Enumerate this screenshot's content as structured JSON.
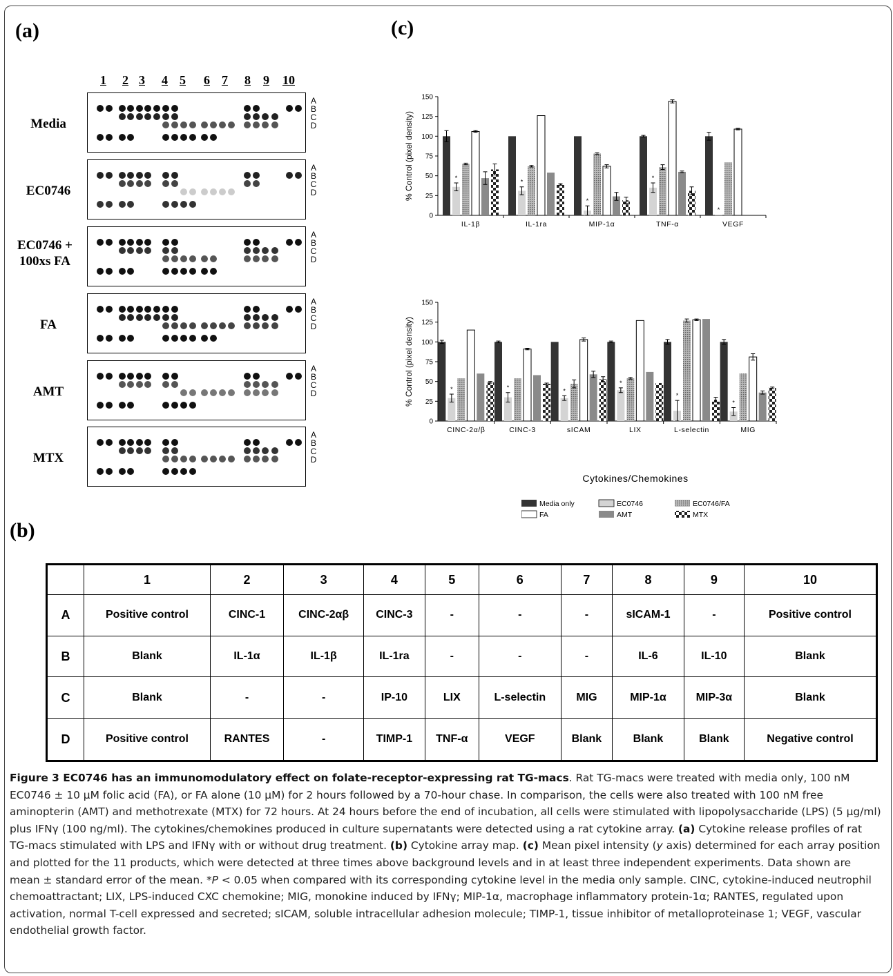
{
  "panel_labels": {
    "a": "(a)",
    "b": "(b)",
    "c": "(c)"
  },
  "array_panel": {
    "column_numbers": [
      "1",
      "2",
      "3",
      "4",
      "5",
      "6",
      "7",
      "8",
      "9",
      "10"
    ],
    "row_letters": [
      "A",
      "B",
      "C",
      "D"
    ],
    "blots": [
      {
        "label": "Media"
      },
      {
        "label": "EC0746"
      },
      {
        "label": "EC0746 + 100xs FA"
      },
      {
        "label": "FA"
      },
      {
        "label": "AMT"
      },
      {
        "label": "MTX"
      }
    ]
  },
  "chart_data": [
    {
      "type": "bar",
      "ylabel": "% Control (pixel density)",
      "ylim": [
        0,
        150
      ],
      "yticks": [
        "0",
        "25",
        "50",
        "75",
        "100",
        "125",
        "150"
      ],
      "categories": [
        "IL-1β",
        "IL-1ra",
        "MIP-1α",
        "TNF-α",
        "VEGF"
      ],
      "series": [
        {
          "name": "Media only",
          "values": [
            100,
            100,
            100,
            100,
            100
          ],
          "errors": [
            7,
            0,
            0,
            1,
            5
          ]
        },
        {
          "name": "EC0746",
          "values": [
            36,
            31,
            6,
            35,
            1
          ],
          "errors": [
            5,
            5,
            6,
            6,
            0
          ],
          "star": [
            true,
            true,
            true,
            true,
            true
          ]
        },
        {
          "name": "EC0746/FA",
          "values": [
            65,
            62,
            78,
            61,
            67
          ],
          "errors": [
            1,
            1,
            1,
            3,
            0
          ]
        },
        {
          "name": "FA",
          "values": [
            106,
            126,
            62,
            144,
            109
          ],
          "errors": [
            1,
            0,
            2,
            2,
            1
          ]
        },
        {
          "name": "AMT",
          "values": [
            47,
            54,
            24,
            55,
            0
          ],
          "errors": [
            8,
            0,
            5,
            1,
            0
          ]
        },
        {
          "name": "MTX",
          "values": [
            58,
            39,
            19,
            31,
            0
          ],
          "errors": [
            7,
            1,
            4,
            5,
            0
          ]
        }
      ]
    },
    {
      "type": "bar",
      "ylabel": "% Control (pixel density)",
      "xlabel": "Cytokines/Chemokines",
      "ylim": [
        0,
        150
      ],
      "yticks": [
        "0",
        "25",
        "50",
        "75",
        "100",
        "125",
        "150"
      ],
      "categories": [
        "CINC-2α/β",
        "CINC-3",
        "sICAM",
        "LIX",
        "L-selectin",
        "MIG"
      ],
      "series": [
        {
          "name": "Media only",
          "values": [
            100,
            100,
            100,
            100,
            100,
            100
          ],
          "errors": [
            2,
            1,
            0,
            1,
            3,
            3
          ]
        },
        {
          "name": "EC0746",
          "values": [
            29,
            30,
            29,
            39,
            13,
            12
          ],
          "errors": [
            5,
            6,
            3,
            3,
            13,
            5
          ],
          "star": [
            true,
            true,
            true,
            true,
            true,
            true
          ]
        },
        {
          "name": "EC0746/FA",
          "values": [
            54,
            54,
            47,
            54,
            127,
            60
          ],
          "errors": [
            0,
            0,
            5,
            1,
            2,
            0
          ]
        },
        {
          "name": "FA",
          "values": [
            115,
            91,
            103,
            127,
            128,
            81
          ],
          "errors": [
            0,
            1,
            2,
            0,
            1,
            4
          ]
        },
        {
          "name": "AMT",
          "values": [
            60,
            58,
            59,
            62,
            129,
            36
          ],
          "errors": [
            0,
            0,
            4,
            0,
            0,
            2
          ]
        },
        {
          "name": "MTX",
          "values": [
            49,
            47,
            53,
            48,
            27,
            42
          ],
          "errors": [
            1,
            1,
            3,
            0,
            3,
            1
          ]
        }
      ]
    }
  ],
  "legend": [
    "Media only",
    "EC0746",
    "EC0746/FA",
    "FA",
    "AMT",
    "MTX"
  ],
  "series_colors": {
    "Media only": "#333333",
    "EC0746": "#d4d4d4",
    "EC0746/FA": "#aaaaaa",
    "FA": "#ffffff",
    "AMT": "#8a8a8a",
    "MTX": "#444444"
  },
  "map_table": {
    "header": [
      "",
      "1",
      "2",
      "3",
      "4",
      "5",
      "6",
      "7",
      "8",
      "9",
      "10"
    ],
    "rows": [
      [
        "A",
        "Positive control",
        "CINC-1",
        "CINC-2αβ",
        "CINC-3",
        "-",
        "-",
        "-",
        "sICAM-1",
        "-",
        "Positive control"
      ],
      [
        "B",
        "Blank",
        "IL-1α",
        "IL-1β",
        "IL-1ra",
        "-",
        "-",
        "-",
        "IL-6",
        "IL-10",
        "Blank"
      ],
      [
        "C",
        "Blank",
        "-",
        "-",
        "IP-10",
        "LIX",
        "L-selectin",
        "MIG",
        "MIP-1α",
        "MIP-3α",
        "Blank"
      ],
      [
        "D",
        "Positive control",
        "RANTES",
        "-",
        "TIMP-1",
        "TNF-α",
        "VEGF",
        "Blank",
        "Blank",
        "Blank",
        "Negative control"
      ]
    ]
  },
  "caption": {
    "title": "Figure 3 EC0746 has an immunomodulatory effect on folate-receptor-expressing rat TG-macs",
    "s1": ". Rat TG-macs were treated with media only, 100 nM EC0746 ± 10 μM folic acid (FA), or FA alone (10 μM) for 2 hours followed by a 70-hour chase. In comparison, the cells were also treated with 100 nM free aminopterin (AMT) and methotrexate (MTX) for 72 hours. At 24 hours before the end of incubation, all cells were stimulated with lipopolysaccharide (LPS) (5 μg/ml) plus IFNγ (100 ng/ml). The cytokines/chemokines produced in culture supernatants were detected using a rat cytokine array. ",
    "a_tag": "(a)",
    "s2": " Cytokine release profiles of rat TG-macs stimulated with LPS and IFNγ with or without drug treatment. ",
    "b_tag": "(b)",
    "s3": " Cytokine array map. ",
    "c_tag": "(c)",
    "s4": " Mean pixel intensity (",
    "y_axis": "y",
    "s5": " axis) determined for each array position and plotted for the 11 products, which were detected at three times above background levels and in at least three independent experiments. Data shown are mean ± standard error of the mean. *",
    "p_italic": "P",
    "s6": " < 0.05 when compared with its corresponding cytokine level in the media only sample. CINC, cytokine-induced neutrophil chemoattractant; LIX, LPS-induced CXC chemokine; MIG, monokine induced by IFNγ; MIP-1α, macrophage inflammatory protein-1α; RANTES, regulated upon activation, normal T-cell expressed and secreted; sICAM, soluble intracellular adhesion molecule; TIMP-1, tissue inhibitor of metalloproteinase 1; VEGF, vascular endothelial growth factor."
  }
}
